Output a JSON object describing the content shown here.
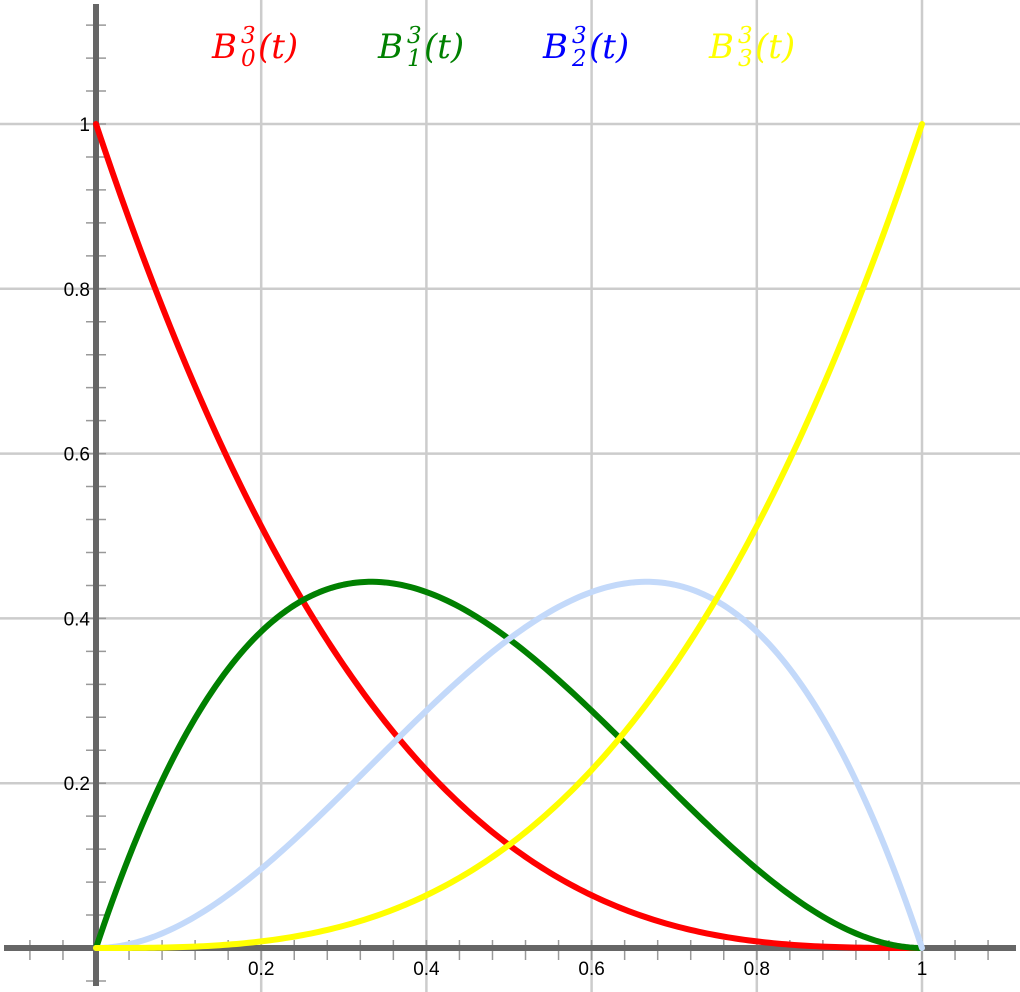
{
  "chart_data": {
    "type": "line",
    "title": "",
    "xlabel": "",
    "ylabel": "",
    "xlim": [
      -0.11,
      1.12
    ],
    "ylim": [
      -0.05,
      1.15
    ],
    "grid": true,
    "legend_position": "top",
    "x_ticks": [
      {
        "value": 0.2,
        "label": "0.2"
      },
      {
        "value": 0.4,
        "label": "0.4"
      },
      {
        "value": 0.6,
        "label": "0.6"
      },
      {
        "value": 0.8,
        "label": "0.8"
      },
      {
        "value": 1.0,
        "label": "1"
      }
    ],
    "y_ticks": [
      {
        "value": 0.2,
        "label": "0.2"
      },
      {
        "value": 0.4,
        "label": "0.4"
      },
      {
        "value": 0.6,
        "label": "0.6"
      },
      {
        "value": 0.8,
        "label": "0.8"
      },
      {
        "value": 1.0,
        "label": "1"
      }
    ],
    "x": [
      0,
      0.1,
      0.2,
      0.3,
      0.4,
      0.5,
      0.6,
      0.7,
      0.8,
      0.9,
      1.0
    ],
    "series": [
      {
        "name": "B_0^3(t)",
        "label": {
          "base": "B",
          "sup": "3",
          "sub": "0",
          "arg": "(t)"
        },
        "color": "#ff0000",
        "values": [
          1.0,
          0.729,
          0.512,
          0.343,
          0.216,
          0.125,
          0.064,
          0.027,
          0.008,
          0.001,
          0.0
        ]
      },
      {
        "name": "B_1^3(t)",
        "label": {
          "base": "B",
          "sup": "3",
          "sub": "1",
          "arg": "(t)"
        },
        "color": "#008000",
        "values": [
          0.0,
          0.243,
          0.384,
          0.441,
          0.432,
          0.375,
          0.288,
          0.189,
          0.096,
          0.027,
          0.0
        ]
      },
      {
        "name": "B_2^3(t)",
        "label": {
          "base": "B",
          "sup": "3",
          "sub": "2",
          "arg": "(t)"
        },
        "color": "#0000ff",
        "line_color": "#c3d9fa",
        "values": [
          0.0,
          0.027,
          0.096,
          0.189,
          0.288,
          0.375,
          0.432,
          0.441,
          0.384,
          0.243,
          0.0
        ]
      },
      {
        "name": "B_3^3(t)",
        "label": {
          "base": "B",
          "sup": "3",
          "sub": "3",
          "arg": "(t)"
        },
        "color": "#ffff00",
        "values": [
          0.0,
          0.001,
          0.008,
          0.027,
          0.064,
          0.125,
          0.216,
          0.343,
          0.512,
          0.729,
          1.0
        ]
      }
    ],
    "colors": {
      "grid_major": "#cccccc",
      "axis": "#666666",
      "minor_tick": "#999999"
    }
  }
}
